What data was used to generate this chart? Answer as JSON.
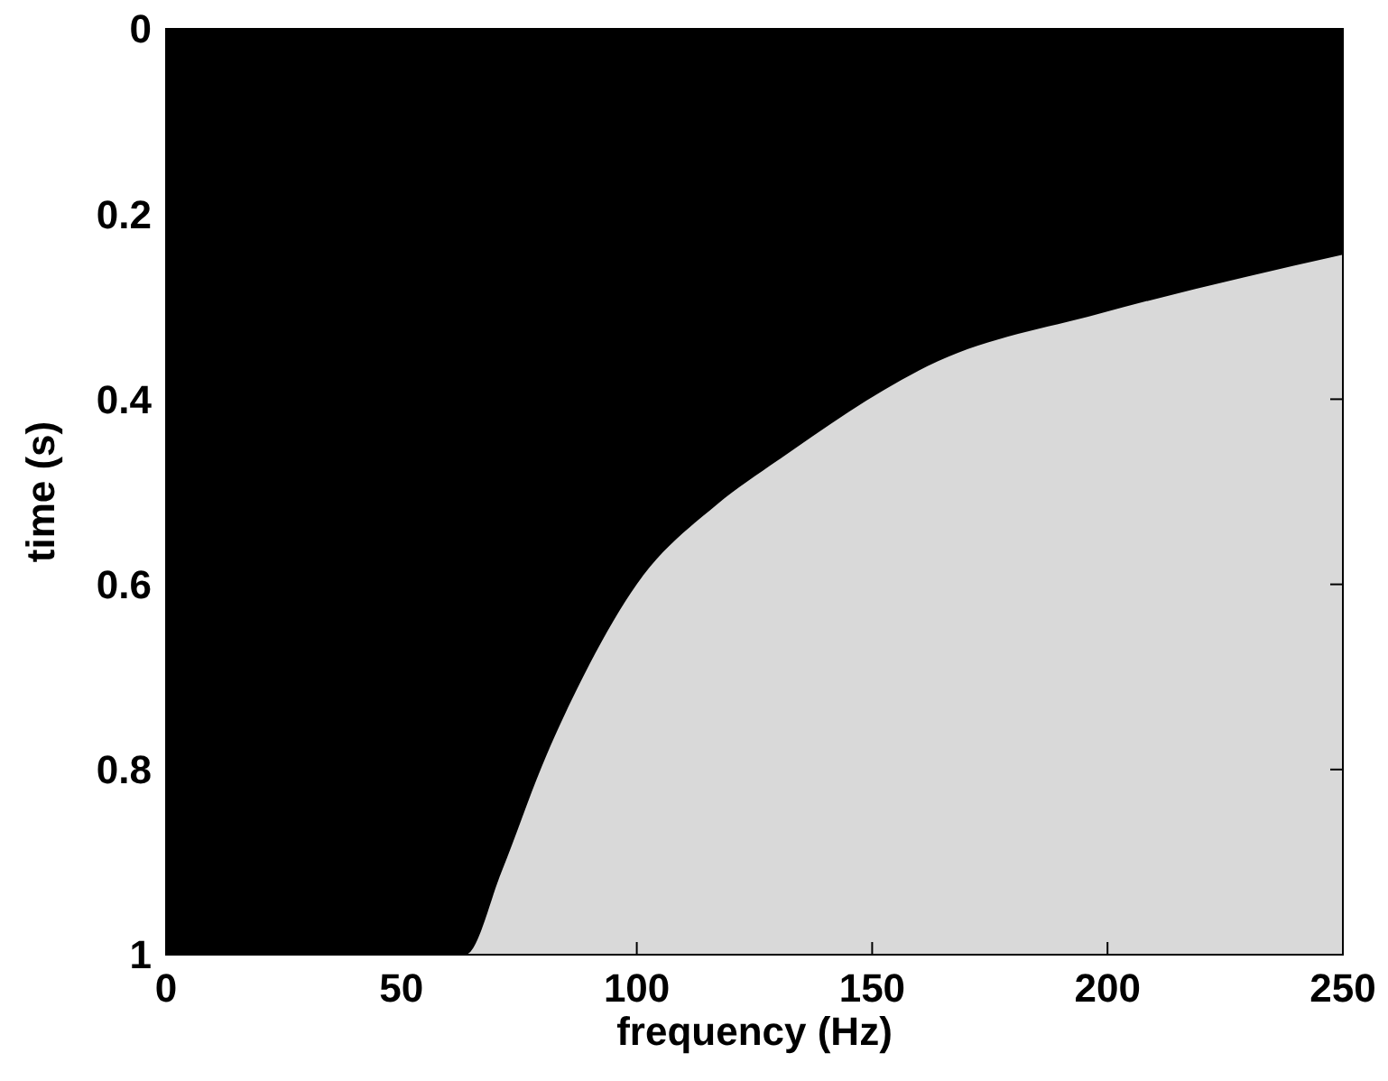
{
  "chart_data": {
    "type": "area",
    "xlabel": "frequency (Hz)",
    "ylabel": "time (s)",
    "x": [
      0,
      63.6,
      71.3,
      79.8,
      90,
      100,
      117,
      130,
      164,
      198,
      250
    ],
    "series": [
      {
        "color": "#000000",
        "values": [
          1.0,
          1.0,
          0.91,
          0.797,
          0.686,
          0.6,
          0.514,
          0.466,
          0.359,
          0.308,
          0.244
        ]
      }
    ],
    "xlim": [
      0,
      250
    ],
    "ylim": [
      1,
      0
    ],
    "xticks": [
      0,
      50,
      100,
      150,
      200,
      250
    ],
    "yticks": [
      0,
      0.2,
      0.4,
      0.6,
      0.8,
      1
    ],
    "grid": false
  }
}
